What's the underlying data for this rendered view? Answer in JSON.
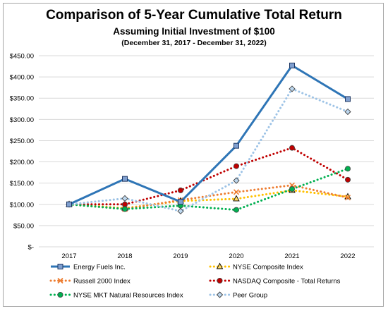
{
  "chart_data": {
    "type": "line",
    "title": "Comparison of 5-Year Cumulative Total Return",
    "subtitle": "Assuming Initial Investment of $100",
    "subtitle2": "(December 31, 2017 - December 31, 2022)",
    "categories": [
      "2017",
      "2018",
      "2019",
      "2020",
      "2021",
      "2022"
    ],
    "ylim": [
      0,
      450
    ],
    "y_ticks": [
      0,
      50,
      100,
      150,
      200,
      250,
      300,
      350,
      400,
      450
    ],
    "y_tick_labels": [
      "$-",
      "$50.00",
      "$100.00",
      "$150.00",
      "$200.00",
      "$250.00",
      "$300.00",
      "$350.00",
      "$400.00",
      "$450.00"
    ],
    "grid": true,
    "legend_position": "bottom",
    "series": [
      {
        "name": "Energy Fuels Inc.",
        "values": [
          100,
          160,
          106,
          238,
          427,
          348
        ],
        "color": "#2e75b6",
        "style": "solid",
        "marker": "square"
      },
      {
        "name": "NYSE Composite Index",
        "values": [
          100,
          91,
          108,
          113,
          133,
          118
        ],
        "color": "#ffc000",
        "style": "dotted",
        "marker": "triangle"
      },
      {
        "name": "Russell 2000 Index",
        "values": [
          100,
          89,
          110,
          129,
          145,
          116
        ],
        "color": "#ed7d31",
        "style": "dotted",
        "marker": "x"
      },
      {
        "name": "NASDAQ Composite - Total Returns",
        "values": [
          100,
          100,
          133,
          190,
          233,
          158
        ],
        "color": "#c00000",
        "style": "dotted",
        "marker": "circle"
      },
      {
        "name": "NYSE MKT Natural Resources Index",
        "values": [
          100,
          89,
          97,
          87,
          136,
          184
        ],
        "color": "#00b050",
        "style": "dotted",
        "marker": "circle"
      },
      {
        "name": "Peer Group",
        "values": [
          100,
          114,
          84,
          156,
          372,
          318
        ],
        "color": "#9dc3e6",
        "style": "dotted",
        "marker": "diamond"
      }
    ]
  }
}
